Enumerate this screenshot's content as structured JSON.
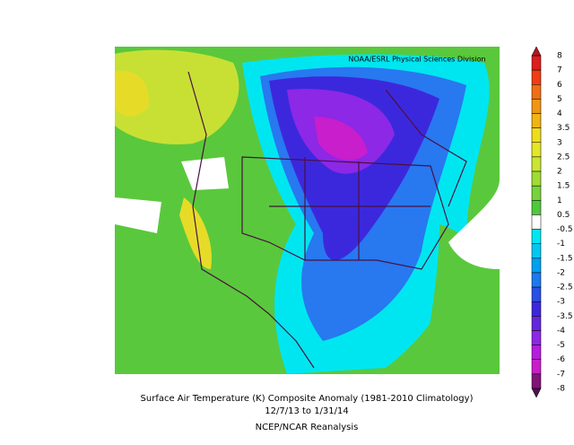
{
  "credit": "NOAA/ESRL Physical Sciences Division",
  "title": "Surface Air Temperature (K) Composite Anomaly (1981-2010 Climatology)",
  "dates": "12/7/13  to 1/31/14",
  "source": "NCEP/NCAR Reanalysis",
  "colorbar": {
    "labels": [
      "8",
      "7",
      "6",
      "5",
      "4",
      "3.5",
      "3",
      "2.5",
      "2",
      "1.5",
      "1",
      "0.5",
      "-0.5",
      "-1",
      "-1.5",
      "-2",
      "-2.5",
      "-3",
      "-3.5",
      "-4",
      "-5",
      "-6",
      "-7",
      "-8"
    ]
  }
}
